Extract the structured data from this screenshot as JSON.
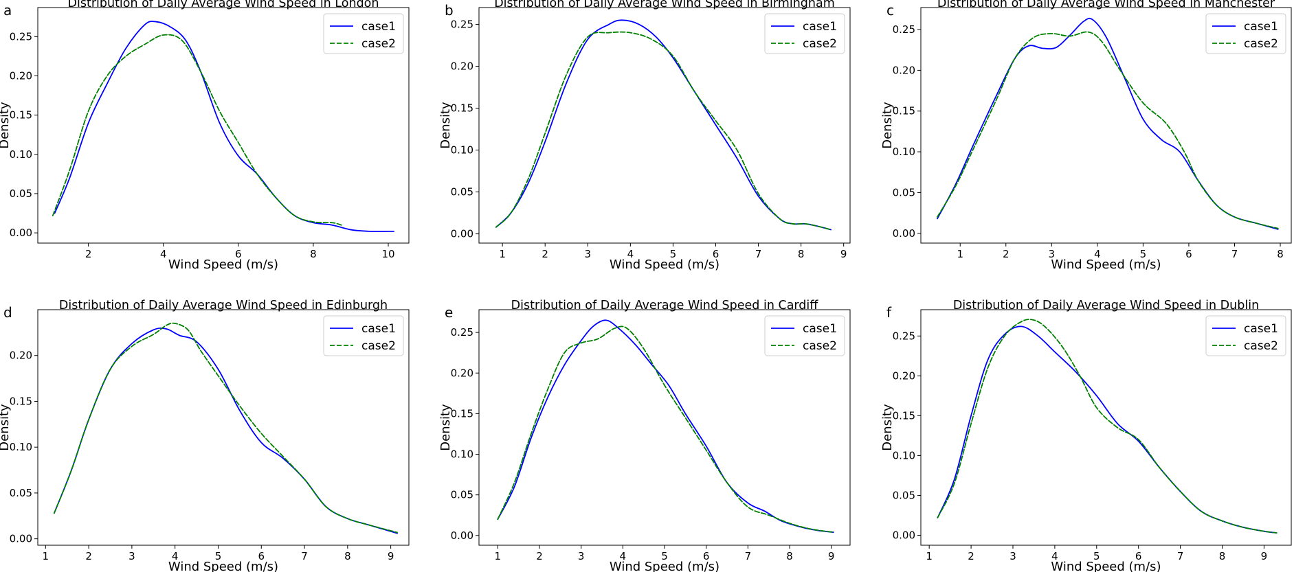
{
  "figure": {
    "colors": {
      "case1": "#0000ff",
      "case2": "#008000"
    }
  },
  "chart_data": [
    {
      "type": "line",
      "panel": "a",
      "title": "Distribution of Daily Average Wind Speed in London",
      "xlabel": "Wind Speed (m/s)",
      "ylabel": "Density",
      "xlim": [
        0.65,
        10.55
      ],
      "ylim": [
        -0.013,
        0.287
      ],
      "xticks": [
        2,
        4,
        6,
        8,
        10
      ],
      "yticks": [
        0.0,
        0.05,
        0.1,
        0.15,
        0.2,
        0.25
      ],
      "ytick_labels": [
        "0.00",
        "0.05",
        "0.10",
        "0.15",
        "0.20",
        "0.25"
      ],
      "grid": false,
      "legend_location": "top-right",
      "series": [
        {
          "name": "case1",
          "style": "solid",
          "x": [
            1.1,
            1.5,
            2.0,
            2.5,
            3.0,
            3.5,
            3.8,
            4.2,
            4.6,
            5.0,
            5.5,
            6.0,
            6.5,
            7.0,
            7.5,
            8.0,
            8.5,
            9.0,
            9.5,
            10.15
          ],
          "y": [
            0.025,
            0.07,
            0.14,
            0.19,
            0.235,
            0.265,
            0.269,
            0.262,
            0.245,
            0.205,
            0.14,
            0.098,
            0.075,
            0.045,
            0.022,
            0.013,
            0.01,
            0.004,
            0.002,
            0.002
          ]
        },
        {
          "name": "case2",
          "style": "dashed",
          "x": [
            1.05,
            1.5,
            2.0,
            2.5,
            3.0,
            3.5,
            4.0,
            4.5,
            5.0,
            5.5,
            6.0,
            6.5,
            7.0,
            7.5,
            8.0,
            8.5,
            8.75
          ],
          "y": [
            0.022,
            0.08,
            0.155,
            0.2,
            0.225,
            0.24,
            0.252,
            0.245,
            0.205,
            0.155,
            0.115,
            0.075,
            0.045,
            0.022,
            0.014,
            0.013,
            0.01
          ]
        }
      ]
    },
    {
      "type": "line",
      "panel": "b",
      "title": "Distribution of Daily Average Wind Speed in Birmingham",
      "xlabel": "Wind Speed (m/s)",
      "ylabel": "Density",
      "xlim": [
        0.45,
        9.15
      ],
      "ylim": [
        -0.011,
        0.27
      ],
      "xticks": [
        1,
        2,
        3,
        4,
        5,
        6,
        7,
        8,
        9
      ],
      "yticks": [
        0.0,
        0.05,
        0.1,
        0.15,
        0.2,
        0.25
      ],
      "ytick_labels": [
        "0.00",
        "0.05",
        "0.10",
        "0.15",
        "0.20",
        "0.25"
      ],
      "grid": false,
      "legend_location": "top-right",
      "series": [
        {
          "name": "case1",
          "style": "solid",
          "x": [
            0.85,
            1.2,
            1.6,
            2.0,
            2.5,
            3.0,
            3.5,
            3.8,
            4.2,
            4.6,
            5.0,
            5.5,
            6.0,
            6.5,
            7.0,
            7.5,
            7.8,
            8.1,
            8.4,
            8.7
          ],
          "y": [
            0.008,
            0.025,
            0.06,
            0.11,
            0.18,
            0.232,
            0.25,
            0.255,
            0.25,
            0.235,
            0.21,
            0.17,
            0.13,
            0.09,
            0.045,
            0.018,
            0.012,
            0.012,
            0.009,
            0.005
          ]
        },
        {
          "name": "case2",
          "style": "dashed",
          "x": [
            0.85,
            1.2,
            1.6,
            2.0,
            2.5,
            3.0,
            3.5,
            4.0,
            4.5,
            5.0,
            5.5,
            6.0,
            6.5,
            7.0,
            7.5,
            7.8,
            8.1,
            8.4,
            8.7
          ],
          "y": [
            0.008,
            0.025,
            0.065,
            0.12,
            0.19,
            0.235,
            0.24,
            0.24,
            0.232,
            0.212,
            0.17,
            0.135,
            0.1,
            0.048,
            0.018,
            0.012,
            0.012,
            0.009,
            0.005
          ]
        }
      ]
    },
    {
      "type": "line",
      "panel": "c",
      "title": "Distribution of Daily Average Wind Speed in Manchester",
      "xlabel": "Wind Speed (m/s)",
      "ylabel": "Density",
      "xlim": [
        0.14,
        8.24
      ],
      "ylim": [
        -0.012,
        0.277
      ],
      "xticks": [
        1,
        2,
        3,
        4,
        5,
        6,
        7,
        8
      ],
      "yticks": [
        0.0,
        0.05,
        0.1,
        0.15,
        0.2,
        0.25
      ],
      "ytick_labels": [
        "0.00",
        "0.05",
        "0.10",
        "0.15",
        "0.20",
        "0.25"
      ],
      "grid": false,
      "legend_location": "top-right",
      "series": [
        {
          "name": "case1",
          "style": "solid",
          "x": [
            0.5,
            0.9,
            1.3,
            1.8,
            2.2,
            2.5,
            2.8,
            3.1,
            3.4,
            3.7,
            3.9,
            4.2,
            4.6,
            5.0,
            5.4,
            5.8,
            6.2,
            6.6,
            7.0,
            7.5,
            7.95
          ],
          "y": [
            0.018,
            0.06,
            0.11,
            0.17,
            0.215,
            0.23,
            0.227,
            0.228,
            0.243,
            0.26,
            0.262,
            0.24,
            0.19,
            0.14,
            0.115,
            0.1,
            0.065,
            0.035,
            0.02,
            0.012,
            0.005
          ]
        },
        {
          "name": "case2",
          "style": "dashed",
          "x": [
            0.5,
            0.9,
            1.3,
            1.8,
            2.2,
            2.6,
            3.0,
            3.4,
            3.8,
            4.1,
            4.5,
            5.0,
            5.5,
            5.9,
            6.2,
            6.6,
            7.0,
            7.5,
            7.95
          ],
          "y": [
            0.02,
            0.058,
            0.105,
            0.165,
            0.215,
            0.24,
            0.245,
            0.242,
            0.247,
            0.235,
            0.2,
            0.16,
            0.135,
            0.1,
            0.065,
            0.035,
            0.02,
            0.012,
            0.006
          ]
        }
      ]
    },
    {
      "type": "line",
      "panel": "d",
      "title": "Distribution of Daily Average Wind Speed in Edinburgh",
      "xlabel": "Wind Speed (m/s)",
      "ylabel": "Density",
      "xlim": [
        0.82,
        9.42
      ],
      "ylim": [
        -0.007,
        0.25
      ],
      "xticks": [
        1,
        2,
        3,
        4,
        5,
        6,
        7,
        8,
        9
      ],
      "yticks": [
        0.0,
        0.05,
        0.1,
        0.15,
        0.2
      ],
      "ytick_labels": [
        "0.00",
        "0.05",
        "0.10",
        "0.15",
        "0.20"
      ],
      "grid": false,
      "legend_location": "top-right",
      "series": [
        {
          "name": "case1",
          "style": "solid",
          "x": [
            1.2,
            1.6,
            2.0,
            2.5,
            3.0,
            3.5,
            3.8,
            4.1,
            4.5,
            5.0,
            5.5,
            6.0,
            6.5,
            7.0,
            7.5,
            8.0,
            8.5,
            9.15
          ],
          "y": [
            0.028,
            0.075,
            0.13,
            0.185,
            0.213,
            0.228,
            0.229,
            0.222,
            0.215,
            0.185,
            0.14,
            0.105,
            0.088,
            0.065,
            0.035,
            0.022,
            0.015,
            0.006
          ]
        },
        {
          "name": "case2",
          "style": "dashed",
          "x": [
            1.2,
            1.6,
            2.0,
            2.5,
            3.0,
            3.5,
            3.8,
            4.0,
            4.3,
            4.6,
            5.0,
            5.5,
            6.0,
            6.5,
            7.0,
            7.5,
            8.0,
            8.5,
            9.15
          ],
          "y": [
            0.028,
            0.075,
            0.13,
            0.185,
            0.21,
            0.223,
            0.233,
            0.235,
            0.228,
            0.205,
            0.178,
            0.145,
            0.115,
            0.09,
            0.065,
            0.035,
            0.022,
            0.015,
            0.007
          ]
        }
      ]
    },
    {
      "type": "line",
      "panel": "e",
      "title": "Distribution of Daily Average Wind Speed in Cardiff",
      "xlabel": "Wind Speed (m/s)",
      "ylabel": "Density",
      "xlim": [
        0.55,
        9.45
      ],
      "ylim": [
        -0.012,
        0.278
      ],
      "xticks": [
        1,
        2,
        3,
        4,
        5,
        6,
        7,
        8,
        9
      ],
      "yticks": [
        0.0,
        0.05,
        0.1,
        0.15,
        0.2,
        0.25
      ],
      "ytick_labels": [
        "0.00",
        "0.05",
        "0.10",
        "0.15",
        "0.20",
        "0.25"
      ],
      "grid": false,
      "legend_location": "top-right",
      "series": [
        {
          "name": "case1",
          "style": "solid",
          "x": [
            1.0,
            1.4,
            1.8,
            2.2,
            2.6,
            3.0,
            3.3,
            3.6,
            3.9,
            4.3,
            4.7,
            5.1,
            5.5,
            6.0,
            6.5,
            7.0,
            7.4,
            7.8,
            8.3,
            8.7,
            9.05
          ],
          "y": [
            0.02,
            0.06,
            0.12,
            0.17,
            0.21,
            0.24,
            0.258,
            0.265,
            0.255,
            0.235,
            0.21,
            0.185,
            0.15,
            0.11,
            0.065,
            0.04,
            0.03,
            0.018,
            0.01,
            0.006,
            0.004
          ]
        },
        {
          "name": "case2",
          "style": "dashed",
          "x": [
            1.0,
            1.4,
            1.8,
            2.2,
            2.6,
            3.0,
            3.4,
            3.8,
            4.1,
            4.5,
            5.0,
            5.5,
            6.0,
            6.5,
            7.0,
            7.5,
            8.0,
            8.5,
            9.05
          ],
          "y": [
            0.02,
            0.065,
            0.125,
            0.18,
            0.225,
            0.237,
            0.242,
            0.255,
            0.255,
            0.23,
            0.185,
            0.145,
            0.105,
            0.065,
            0.035,
            0.025,
            0.015,
            0.008,
            0.004
          ]
        }
      ]
    },
    {
      "type": "line",
      "panel": "f",
      "title": "Distribution of Daily Average Wind Speed in Dublin",
      "xlabel": "Wind Speed (m/s)",
      "ylabel": "Density",
      "xlim": [
        0.8,
        9.65
      ],
      "ylim": [
        -0.0125,
        0.283
      ],
      "xticks": [
        1,
        2,
        3,
        4,
        5,
        6,
        7,
        8,
        9
      ],
      "yticks": [
        0.0,
        0.05,
        0.1,
        0.15,
        0.2,
        0.25
      ],
      "ytick_labels": [
        "0.00",
        "0.05",
        "0.10",
        "0.15",
        "0.20",
        "0.25"
      ],
      "grid": false,
      "legend_location": "top-right",
      "series": [
        {
          "name": "case1",
          "style": "solid",
          "x": [
            1.2,
            1.6,
            2.0,
            2.4,
            2.8,
            3.2,
            3.6,
            4.0,
            4.5,
            5.0,
            5.5,
            6.0,
            6.5,
            7.0,
            7.5,
            8.0,
            8.5,
            9.0,
            9.3
          ],
          "y": [
            0.022,
            0.07,
            0.15,
            0.22,
            0.252,
            0.262,
            0.25,
            0.23,
            0.205,
            0.175,
            0.14,
            0.118,
            0.085,
            0.055,
            0.03,
            0.018,
            0.01,
            0.005,
            0.003
          ]
        },
        {
          "name": "case2",
          "style": "dashed",
          "x": [
            1.2,
            1.6,
            2.0,
            2.4,
            2.8,
            3.2,
            3.5,
            3.8,
            4.2,
            4.6,
            5.0,
            5.5,
            6.0,
            6.5,
            7.0,
            7.5,
            8.0,
            8.5,
            9.0,
            9.3
          ],
          "y": [
            0.022,
            0.065,
            0.14,
            0.21,
            0.25,
            0.268,
            0.27,
            0.26,
            0.235,
            0.2,
            0.16,
            0.135,
            0.12,
            0.085,
            0.055,
            0.03,
            0.018,
            0.01,
            0.005,
            0.003
          ]
        }
      ]
    }
  ]
}
